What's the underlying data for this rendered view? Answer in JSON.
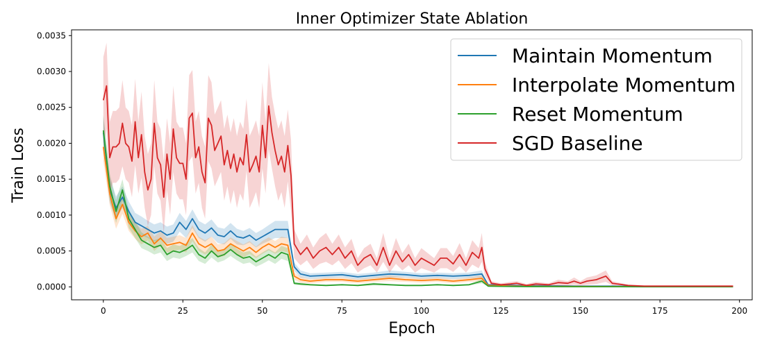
{
  "chart_data": {
    "type": "line",
    "title": "Inner Optimizer State Ablation",
    "xlabel": "Epoch",
    "ylabel": "Train Loss",
    "xlim": [
      -10,
      204
    ],
    "ylim": [
      -0.00018,
      0.00358
    ],
    "xticks": [
      0,
      25,
      50,
      75,
      100,
      125,
      150,
      175,
      200
    ],
    "yticks": [
      0.0,
      0.0005,
      0.001,
      0.0015,
      0.002,
      0.0025,
      0.003,
      0.0035
    ],
    "ytick_labels": [
      "0.0000",
      "0.0005",
      "0.0010",
      "0.0015",
      "0.0020",
      "0.0025",
      "0.0030",
      "0.0035"
    ],
    "xtick_labels": [
      "0",
      "25",
      "50",
      "75",
      "100",
      "125",
      "150",
      "175",
      "200"
    ],
    "grid": false,
    "legend_position": "top-right",
    "series": [
      {
        "name": "Maintain Momentum",
        "color": "#1f77b4",
        "x": [
          0,
          2,
          4,
          6,
          8,
          10,
          12,
          14,
          16,
          18,
          20,
          22,
          24,
          26,
          28,
          30,
          32,
          34,
          36,
          38,
          40,
          42,
          44,
          46,
          48,
          50,
          52,
          54,
          56,
          58,
          60,
          62,
          65,
          70,
          75,
          80,
          85,
          90,
          95,
          100,
          105,
          110,
          115,
          119,
          121,
          125,
          130,
          140,
          150,
          160,
          170,
          180,
          190,
          198
        ],
        "y": [
          0.00215,
          0.00135,
          0.0011,
          0.00125,
          0.00105,
          0.0009,
          0.00085,
          0.0008,
          0.00075,
          0.00078,
          0.00072,
          0.00075,
          0.0009,
          0.0008,
          0.00095,
          0.0008,
          0.00075,
          0.00082,
          0.00072,
          0.0007,
          0.00078,
          0.0007,
          0.00068,
          0.00072,
          0.00065,
          0.0007,
          0.00075,
          0.0008,
          0.0008,
          0.0008,
          0.00028,
          0.00018,
          0.00015,
          0.00016,
          0.00017,
          0.00014,
          0.00016,
          0.00018,
          0.00017,
          0.00015,
          0.00016,
          0.00015,
          0.00016,
          0.00018,
          3e-05,
          2.5e-05,
          2e-05,
          1.5e-05,
          1e-05,
          1e-05,
          8e-06,
          6e-06,
          5e-06,
          5e-06
        ],
        "band": [
          0.00022,
          0.00018,
          0.00016,
          0.00015,
          0.00014,
          0.00013,
          0.00013,
          0.00012,
          0.00012,
          0.00012,
          0.00012,
          0.00012,
          0.00013,
          0.00012,
          0.00013,
          0.00012,
          0.00012,
          0.00012,
          0.00011,
          0.00011,
          0.00011,
          0.00011,
          0.0001,
          0.0001,
          0.0001,
          0.0001,
          0.00011,
          0.00012,
          0.00012,
          0.00012,
          6e-05,
          5e-05,
          4e-05,
          4e-05,
          4e-05,
          4e-05,
          4e-05,
          5e-05,
          4e-05,
          4e-05,
          4e-05,
          4e-05,
          4e-05,
          5e-05,
          1e-05,
          1e-05,
          1e-05,
          5e-06,
          5e-06,
          4e-06,
          3e-06,
          3e-06,
          2e-06,
          2e-06
        ]
      },
      {
        "name": "Interpolate Momentum",
        "color": "#ff7f0e",
        "x": [
          0,
          2,
          4,
          6,
          8,
          10,
          12,
          14,
          16,
          18,
          20,
          22,
          24,
          26,
          28,
          30,
          32,
          34,
          36,
          38,
          40,
          42,
          44,
          46,
          48,
          50,
          52,
          54,
          56,
          58,
          60,
          62,
          65,
          70,
          75,
          80,
          85,
          90,
          95,
          100,
          105,
          110,
          115,
          119,
          121,
          125,
          130,
          140,
          150,
          160,
          170,
          180,
          190,
          198
        ],
        "y": [
          0.00195,
          0.0013,
          0.00095,
          0.00115,
          0.0009,
          0.00078,
          0.0007,
          0.00075,
          0.0006,
          0.00068,
          0.00058,
          0.0006,
          0.00062,
          0.00058,
          0.00075,
          0.0006,
          0.00055,
          0.0006,
          0.0005,
          0.00052,
          0.0006,
          0.00055,
          0.0005,
          0.00055,
          0.00048,
          0.00055,
          0.0006,
          0.00055,
          0.0006,
          0.00058,
          0.00015,
          0.0001,
          8e-05,
          0.0001,
          0.0001,
          8e-05,
          0.0001,
          0.00012,
          0.0001,
          9e-05,
          0.0001,
          8e-05,
          0.0001,
          0.00012,
          2e-05,
          1.5e-05,
          1e-05,
          8e-06,
          6e-06,
          5e-06,
          4e-06,
          3e-06,
          3e-06,
          3e-06
        ],
        "band": [
          0.0002,
          0.00016,
          0.00014,
          0.00013,
          0.00012,
          0.00011,
          0.00011,
          0.0001,
          0.0001,
          0.0001,
          0.0001,
          0.0001,
          0.0001,
          0.0001,
          0.00011,
          0.0001,
          0.0001,
          0.0001,
          9e-05,
          9e-05,
          9e-05,
          9e-05,
          9e-05,
          9e-05,
          8e-05,
          9e-05,
          9e-05,
          9e-05,
          0.0001,
          0.0001,
          5e-05,
          4e-05,
          3e-05,
          3e-05,
          3e-05,
          3e-05,
          3e-05,
          4e-05,
          3e-05,
          3e-05,
          3e-05,
          3e-05,
          3e-05,
          4e-05,
          8e-06,
          6e-06,
          5e-06,
          4e-06,
          3e-06,
          3e-06,
          2e-06,
          2e-06,
          2e-06,
          2e-06
        ]
      },
      {
        "name": "Reset Momentum",
        "color": "#2ca02c",
        "x": [
          0,
          2,
          4,
          6,
          8,
          10,
          12,
          14,
          16,
          18,
          20,
          22,
          24,
          26,
          28,
          30,
          32,
          34,
          36,
          38,
          40,
          42,
          44,
          46,
          48,
          50,
          52,
          54,
          56,
          58,
          60,
          62,
          65,
          70,
          75,
          80,
          85,
          90,
          95,
          100,
          105,
          110,
          115,
          119,
          121,
          125,
          130,
          140,
          150,
          160,
          170,
          180,
          190,
          198
        ],
        "y": [
          0.00218,
          0.0014,
          0.00105,
          0.00135,
          0.00095,
          0.0008,
          0.00065,
          0.0006,
          0.00055,
          0.00058,
          0.00045,
          0.0005,
          0.00048,
          0.00052,
          0.00058,
          0.00045,
          0.0004,
          0.0005,
          0.00042,
          0.00045,
          0.00052,
          0.00045,
          0.0004,
          0.00042,
          0.00035,
          0.0004,
          0.00045,
          0.0004,
          0.00048,
          0.00045,
          5e-05,
          4e-05,
          3e-05,
          2e-05,
          3e-05,
          2e-05,
          4e-05,
          3e-05,
          2e-05,
          2e-05,
          3e-05,
          2e-05,
          3e-05,
          8e-05,
          1e-05,
          8e-06,
          5e-06,
          4e-06,
          3e-06,
          3e-06,
          2e-06,
          2e-06,
          2e-06,
          2e-06
        ],
        "band": [
          0.00022,
          0.00018,
          0.00016,
          0.00015,
          0.00013,
          0.00012,
          0.00011,
          0.0001,
          0.0001,
          0.0001,
          9e-05,
          9e-05,
          9e-05,
          9e-05,
          0.0001,
          9e-05,
          8e-05,
          9e-05,
          8e-05,
          8e-05,
          9e-05,
          8e-05,
          8e-05,
          8e-05,
          7e-05,
          8e-05,
          8e-05,
          8e-05,
          9e-05,
          9e-05,
          2e-05,
          2e-05,
          1e-05,
          1e-05,
          1e-05,
          1e-05,
          2e-05,
          1e-05,
          1e-05,
          1e-05,
          1e-05,
          1e-05,
          1e-05,
          3e-05,
          5e-06,
          4e-06,
          3e-06,
          2e-06,
          2e-06,
          1e-06,
          1e-06,
          1e-06,
          1e-06,
          1e-06
        ]
      },
      {
        "name": "SGD Baseline",
        "color": "#d62728",
        "x": [
          0,
          1,
          2,
          3,
          4,
          5,
          6,
          7,
          8,
          9,
          10,
          11,
          12,
          13,
          14,
          15,
          16,
          17,
          18,
          19,
          20,
          21,
          22,
          23,
          24,
          25,
          26,
          27,
          28,
          29,
          30,
          31,
          32,
          33,
          34,
          35,
          36,
          37,
          38,
          39,
          40,
          41,
          42,
          43,
          44,
          45,
          46,
          47,
          48,
          49,
          50,
          51,
          52,
          53,
          54,
          55,
          56,
          57,
          58,
          59,
          60,
          62,
          64,
          66,
          68,
          70,
          72,
          74,
          76,
          78,
          80,
          82,
          84,
          86,
          88,
          90,
          92,
          94,
          96,
          98,
          100,
          102,
          104,
          106,
          108,
          110,
          112,
          114,
          116,
          118,
          119,
          120,
          122,
          125,
          128,
          130,
          133,
          136,
          140,
          143,
          146,
          148,
          150,
          152,
          155,
          158,
          160,
          165,
          170,
          175,
          180,
          190,
          198
        ],
        "y": [
          0.0026,
          0.0028,
          0.0018,
          0.00195,
          0.00195,
          0.002,
          0.00228,
          0.002,
          0.00195,
          0.00175,
          0.0023,
          0.0018,
          0.00212,
          0.0016,
          0.00135,
          0.0015,
          0.00228,
          0.0018,
          0.0017,
          0.00125,
          0.00185,
          0.0015,
          0.0022,
          0.0018,
          0.00172,
          0.00172,
          0.0015,
          0.00235,
          0.00242,
          0.0018,
          0.00195,
          0.0016,
          0.00145,
          0.00235,
          0.00225,
          0.0019,
          0.002,
          0.0021,
          0.0017,
          0.0019,
          0.00165,
          0.00185,
          0.0016,
          0.0018,
          0.0017,
          0.00212,
          0.0016,
          0.0017,
          0.00182,
          0.0016,
          0.00225,
          0.0018,
          0.00252,
          0.00215,
          0.0019,
          0.0017,
          0.00182,
          0.0016,
          0.00197,
          0.00155,
          0.0006,
          0.00045,
          0.00055,
          0.0004,
          0.0005,
          0.00055,
          0.00045,
          0.00055,
          0.0004,
          0.0005,
          0.0003,
          0.0004,
          0.00045,
          0.0003,
          0.00055,
          0.0003,
          0.0005,
          0.00035,
          0.00045,
          0.0003,
          0.0004,
          0.00035,
          0.0003,
          0.0004,
          0.0004,
          0.00032,
          0.00045,
          0.0003,
          0.00048,
          0.0004,
          0.00055,
          0.00025,
          5e-05,
          3e-05,
          4e-05,
          5e-05,
          2e-05,
          4e-05,
          3e-05,
          6e-05,
          5e-05,
          8e-05,
          5e-05,
          8e-05,
          0.0001,
          0.00015,
          5e-05,
          2e-05,
          1e-05,
          1e-05,
          1e-05,
          1e-05,
          1e-05
        ],
        "band": [
          0.0006,
          0.0006,
          0.0005,
          0.0005,
          0.0005,
          0.0005,
          0.0006,
          0.0005,
          0.0005,
          0.0005,
          0.0006,
          0.0005,
          0.0006,
          0.0005,
          0.0005,
          0.0005,
          0.0006,
          0.0005,
          0.0005,
          0.0005,
          0.0005,
          0.0005,
          0.0006,
          0.0005,
          0.0005,
          0.0005,
          0.0005,
          0.0006,
          0.0006,
          0.0005,
          0.0005,
          0.0005,
          0.0005,
          0.0006,
          0.0006,
          0.0005,
          0.0005,
          0.0005,
          0.0005,
          0.0005,
          0.0005,
          0.0005,
          0.0005,
          0.0005,
          0.0005,
          0.0005,
          0.0005,
          0.0005,
          0.0005,
          0.0005,
          0.0006,
          0.0005,
          0.0006,
          0.0005,
          0.0005,
          0.0005,
          0.0005,
          0.0005,
          0.0005,
          0.0005,
          0.0002,
          0.00015,
          0.00018,
          0.00015,
          0.00018,
          0.0002,
          0.00015,
          0.00018,
          0.00015,
          0.00017,
          0.0001,
          0.00014,
          0.00015,
          0.0001,
          0.0002,
          0.0001,
          0.00018,
          0.00012,
          0.00015,
          0.0001,
          0.00014,
          0.00012,
          0.0001,
          0.00014,
          0.00014,
          0.00011,
          0.00016,
          0.0001,
          0.00017,
          0.00014,
          0.0002,
          0.0001,
          3e-05,
          2e-05,
          3e-05,
          3e-05,
          2e-05,
          3e-05,
          2e-05,
          4e-05,
          3e-05,
          5e-05,
          3e-05,
          5e-05,
          6e-05,
          8e-05,
          3e-05,
          1e-05,
          1e-05,
          1e-05,
          1e-05,
          1e-05,
          1e-05
        ]
      }
    ]
  }
}
